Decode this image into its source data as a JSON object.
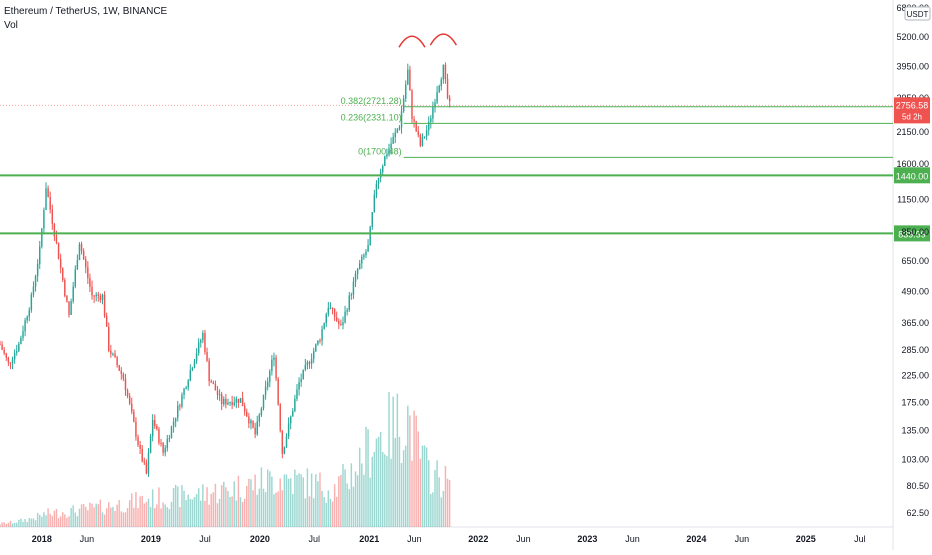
{
  "header": {
    "symbol_title": "Ethereum / TetherUS, 1W, BINANCE",
    "volume_label": "Vol"
  },
  "colors": {
    "up": "#26a69a",
    "down": "#ef5350",
    "level_line": "#4caf50",
    "fib_line": "#4caf50",
    "price_badge": "#ef5350",
    "annotation": "#e53935",
    "axis_text": "#131722"
  },
  "chart_data": {
    "type": "candlestick",
    "title": "Ethereum / TetherUS, 1W, BINANCE",
    "y_scale": "log",
    "ylim": [
      55,
      7000
    ],
    "currency_label": "USDT",
    "y_ticks": [
      "6800.00",
      "5200.00",
      "3950.00",
      "2950.00",
      "2150.00",
      "1600.00",
      "1150.00",
      "850.00",
      "650.00",
      "490.00",
      "365.00",
      "285.00",
      "225.00",
      "175.00",
      "135.00",
      "103.00",
      "80.50",
      "62.50"
    ],
    "y_tick_values": [
      6800,
      5200,
      3950,
      2950,
      2150,
      1600,
      1150,
      850,
      650,
      490,
      365,
      285,
      225,
      175,
      135,
      103,
      80.5,
      62.5
    ],
    "x_ticks": [
      "2018",
      "Jun",
      "2019",
      "Jul",
      "2020",
      "Jul",
      "2021",
      "Jun",
      "2022",
      "Jun",
      "2023",
      "Jun",
      "2024",
      "Jun",
      "2025",
      "Jul"
    ],
    "x_tick_dates": [
      "2018-01-01",
      "2018-06-01",
      "2019-01-01",
      "2019-07-01",
      "2020-01-01",
      "2020-07-01",
      "2021-01-01",
      "2021-06-01",
      "2022-01-01",
      "2022-06-01",
      "2023-01-01",
      "2023-06-01",
      "2024-01-01",
      "2024-06-01",
      "2025-01-01",
      "2025-07-01"
    ],
    "price_path": [
      [
        "2017-08-14",
        300
      ],
      [
        "2017-09-11",
        250
      ],
      [
        "2017-10-16",
        300
      ],
      [
        "2017-11-27",
        460
      ],
      [
        "2017-12-25",
        720
      ],
      [
        "2018-01-15",
        1300
      ],
      [
        "2018-02-12",
        850
      ],
      [
        "2018-04-02",
        390
      ],
      [
        "2018-05-07",
        780
      ],
      [
        "2018-06-18",
        470
      ],
      [
        "2018-07-23",
        470
      ],
      [
        "2018-08-13",
        290
      ],
      [
        "2018-10-01",
        220
      ],
      [
        "2018-11-26",
        110
      ],
      [
        "2018-12-17",
        90
      ],
      [
        "2019-01-07",
        150
      ],
      [
        "2019-02-11",
        110
      ],
      [
        "2019-04-08",
        175
      ],
      [
        "2019-05-27",
        265
      ],
      [
        "2019-06-24",
        330
      ],
      [
        "2019-07-15",
        220
      ],
      [
        "2019-08-26",
        175
      ],
      [
        "2019-10-28",
        180
      ],
      [
        "2019-12-16",
        130
      ],
      [
        "2020-02-17",
        275
      ],
      [
        "2020-03-16",
        110
      ],
      [
        "2020-05-11",
        210
      ],
      [
        "2020-07-20",
        320
      ],
      [
        "2020-08-17",
        430
      ],
      [
        "2020-09-28",
        350
      ],
      [
        "2020-11-23",
        600
      ],
      [
        "2020-12-28",
        740
      ],
      [
        "2021-01-25",
        1350
      ],
      [
        "2021-02-22",
        1700
      ],
      [
        "2021-04-12",
        2300
      ],
      [
        "2021-05-10",
        3800
      ],
      [
        "2021-05-24",
        2500
      ],
      [
        "2021-06-21",
        1900
      ],
      [
        "2021-07-19",
        2300
      ],
      [
        "2021-08-16",
        3200
      ],
      [
        "2021-09-06",
        3900
      ],
      [
        "2021-09-20",
        2950
      ],
      [
        "2021-09-27",
        2757
      ]
    ],
    "volume_path": [
      [
        "2017-08-14",
        3
      ],
      [
        "2018-01-15",
        12
      ],
      [
        "2018-12-17",
        25
      ],
      [
        "2019-06-24",
        30
      ],
      [
        "2020-03-16",
        45
      ],
      [
        "2020-09-07",
        35
      ],
      [
        "2021-01-18",
        80
      ],
      [
        "2021-05-10",
        100
      ],
      [
        "2021-07-19",
        50
      ],
      [
        "2021-09-27",
        40
      ]
    ],
    "horizontal_levels": [
      {
        "price": 1440.0,
        "label": "1440.00"
      },
      {
        "price": 839.99,
        "label": "839.99"
      }
    ],
    "fib_levels": [
      {
        "price": 2721.28,
        "label": "0.382(2721.28)"
      },
      {
        "price": 2331.1,
        "label": "0.236(2331.10)"
      },
      {
        "price": 1700.48,
        "label": "0(1700.48)"
      }
    ],
    "last_price": {
      "value": 2756.58,
      "label": "2756.58",
      "countdown": "5d 2h"
    },
    "annotations": [
      {
        "type": "arc",
        "date": "2021-05-24",
        "price": 5000
      },
      {
        "type": "arc",
        "date": "2021-09-06",
        "price": 5100
      }
    ]
  }
}
